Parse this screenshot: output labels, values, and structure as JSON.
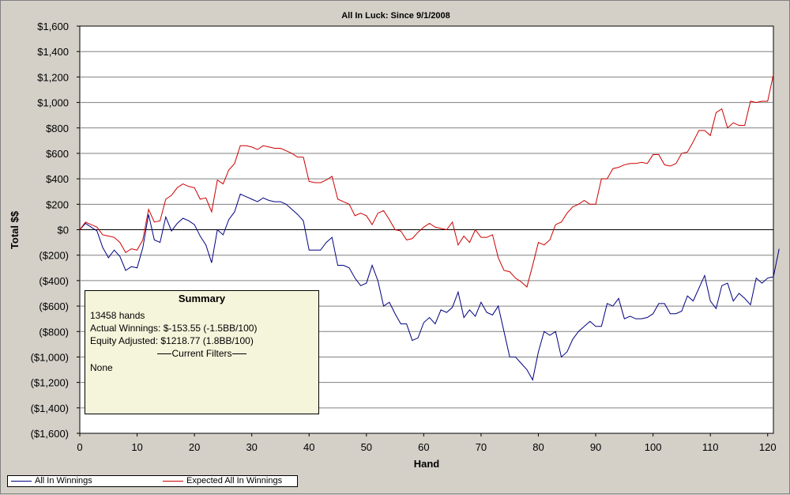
{
  "chart_data": {
    "type": "line",
    "title": "All In Luck: Since 9/1/2008",
    "xlabel": "Hand",
    "ylabel": "Total $$",
    "xlim": [
      0,
      121
    ],
    "ylim": [
      -1600,
      1600
    ],
    "x_ticks": [
      0,
      10,
      20,
      30,
      40,
      50,
      60,
      70,
      80,
      90,
      100,
      110,
      120
    ],
    "y_ticks": [
      1600,
      1400,
      1200,
      1000,
      800,
      600,
      400,
      200,
      0,
      -200,
      -400,
      -600,
      -800,
      -1000,
      -1200,
      -1400,
      -1600
    ],
    "y_tick_labels": [
      "$1,600",
      "$1,400",
      "$1,200",
      "$1,000",
      "$800",
      "$600",
      "$400",
      "$200",
      "$0",
      "($200)",
      "($400)",
      "($600)",
      "($800)",
      "($1,000)",
      "($1,200)",
      "($1,400)",
      "($1,600)"
    ],
    "grid": true,
    "legend_position": "bottom-left",
    "series": [
      {
        "name": "All In Winnings",
        "color": "#000080",
        "values": [
          0,
          50,
          20,
          -10,
          -140,
          -220,
          -160,
          -210,
          -320,
          -290,
          -300,
          -140,
          120,
          -80,
          -100,
          100,
          -10,
          50,
          90,
          70,
          40,
          -50,
          -120,
          -260,
          0,
          -40,
          80,
          140,
          280,
          260,
          240,
          220,
          250,
          230,
          220,
          220,
          200,
          160,
          120,
          70,
          -160,
          -160,
          -160,
          -100,
          -60,
          -280,
          -280,
          -300,
          -380,
          -440,
          -420,
          -280,
          -400,
          -600,
          -570,
          -660,
          -740,
          -740,
          -870,
          -850,
          -730,
          -690,
          -740,
          -630,
          -650,
          -610,
          -490,
          -690,
          -630,
          -680,
          -570,
          -650,
          -670,
          -600,
          -800,
          -1000,
          -1000,
          -1050,
          -1100,
          -1180,
          -960,
          -800,
          -830,
          -800,
          -1000,
          -960,
          -860,
          -800,
          -760,
          -720,
          -760,
          -760,
          -580,
          -600,
          -540,
          -700,
          -680,
          -700,
          -700,
          -690,
          -660,
          -580,
          -580,
          -660,
          -660,
          -640,
          -520,
          -560,
          -460,
          -360,
          -560,
          -620,
          -440,
          -420,
          -560,
          -500,
          -540,
          -590,
          -380,
          -420,
          -380,
          -370,
          -150
        ]
      },
      {
        "name": "Expected All In Winnings",
        "color": "#cc0000",
        "values": [
          0,
          60,
          40,
          20,
          -40,
          -50,
          -60,
          -100,
          -180,
          -150,
          -160,
          -80,
          160,
          60,
          70,
          240,
          270,
          330,
          360,
          340,
          330,
          240,
          250,
          140,
          390,
          360,
          470,
          520,
          660,
          660,
          650,
          630,
          660,
          650,
          640,
          640,
          620,
          600,
          570,
          570,
          380,
          370,
          370,
          390,
          420,
          240,
          220,
          200,
          110,
          130,
          110,
          40,
          130,
          150,
          80,
          0,
          -10,
          -80,
          -70,
          -20,
          20,
          50,
          20,
          10,
          0,
          60,
          -120,
          -50,
          -100,
          0,
          -60,
          -60,
          -40,
          -220,
          -320,
          -330,
          -380,
          -410,
          -450,
          -280,
          -100,
          -120,
          -80,
          40,
          60,
          130,
          180,
          200,
          230,
          200,
          200,
          400,
          400,
          480,
          490,
          510,
          520,
          520,
          530,
          520,
          590,
          590,
          510,
          500,
          520,
          600,
          610,
          690,
          780,
          780,
          740,
          920,
          950,
          800,
          840,
          820,
          820,
          1010,
          1000,
          1010,
          1010,
          1220
        ]
      }
    ],
    "zero_line": true
  },
  "summary": {
    "title": "Summary",
    "hands": "13458 hands",
    "actual": "Actual Winnings: $-153.55 (-1.5BB/100)",
    "equity": "Equity Adjusted: $1218.77 (1.8BB/100)",
    "filters_heading": "Current Filters",
    "filters_value": "None"
  },
  "legend": {
    "items": [
      {
        "label": "All In Winnings",
        "color": "#000080"
      },
      {
        "label": "Expected All In Winnings",
        "color": "#cc0000"
      }
    ]
  }
}
